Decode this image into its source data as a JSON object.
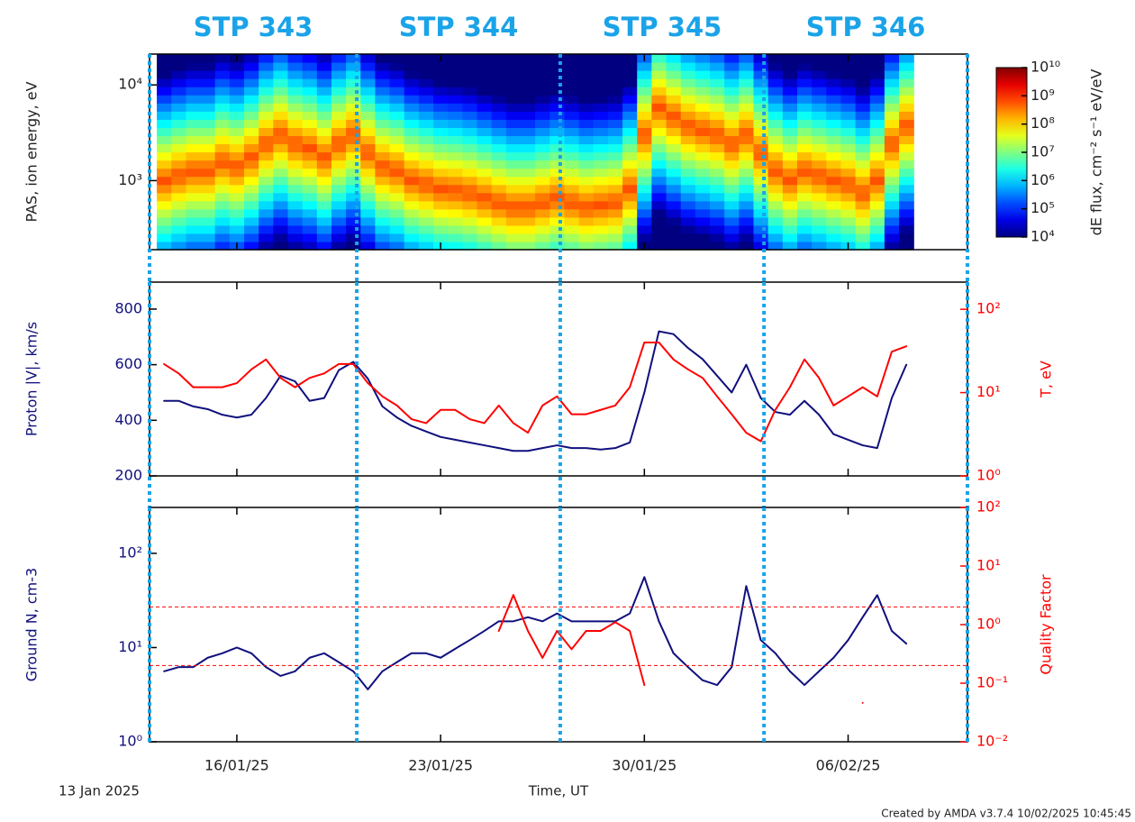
{
  "chart_data": [
    {
      "type": "spectrogram",
      "ylabel": "PAS, ion energy, eV",
      "log_y": true,
      "stp_labels": [
        "STP 343",
        "STP 344",
        "STP 345",
        "STP 346"
      ],
      "stp_color": "#1aa3e8",
      "stp_boundaries": [
        0,
        7.12,
        14.11,
        21.11,
        28.1
      ],
      "xlim": [
        0,
        28.1
      ],
      "xticks": [
        {
          "value": 3,
          "label": "16/01/25"
        },
        {
          "value": 10,
          "label": "23/01/25"
        },
        {
          "value": 17,
          "label": "30/01/25"
        },
        {
          "value": 24,
          "label": "06/02/25"
        }
      ],
      "ylim": [
        190,
        21000
      ],
      "yticks": [
        {
          "value": 1000,
          "label": "10³"
        },
        {
          "value": 10000,
          "label": "10⁴"
        }
      ],
      "colorbar": {
        "label": "dE flux, cm⁻² s⁻¹ eV/eV",
        "lim": [
          10000,
          10000000000
        ],
        "ticks": [
          {
            "value": 10000,
            "label": "10⁴"
          },
          {
            "value": 100000,
            "label": "10⁵"
          },
          {
            "value": 1000000,
            "label": "10⁶"
          },
          {
            "value": 10000000,
            "label": "10⁷"
          },
          {
            "value": 100000000,
            "label": "10⁸"
          },
          {
            "value": 1000000000,
            "label": "10⁹"
          },
          {
            "value": 10000000000,
            "label": "10¹⁰"
          }
        ]
      },
      "x": [
        0.5,
        1,
        1.5,
        2,
        2.5,
        3,
        3.5,
        4,
        4.5,
        5,
        5.5,
        6,
        6.5,
        7,
        7.5,
        8,
        8.5,
        9,
        9.5,
        10,
        10.5,
        11,
        11.5,
        12,
        12.5,
        13,
        13.5,
        14,
        14.5,
        15,
        15.5,
        16,
        16.5,
        17,
        17.5,
        18,
        18.5,
        19,
        19.5,
        20,
        20.5,
        21,
        21.5,
        22,
        22.5,
        23,
        23.5,
        24,
        24.5,
        25,
        25.5,
        26
      ],
      "values": [
        1000,
        1140,
        1270,
        1270,
        1580,
        1410,
        1760,
        2440,
        3030,
        2440,
        2190,
        1760,
        2440,
        3030,
        1960,
        1410,
        1270,
        1020,
        920,
        820,
        790,
        740,
        660,
        590,
        530,
        530,
        590,
        660,
        590,
        530,
        560,
        590,
        820,
        3030,
        5800,
        4670,
        3760,
        3370,
        3030,
        2440,
        3030,
        1960,
        1270,
        1020,
        1270,
        1140,
        1020,
        920,
        740,
        1020,
        2440,
        3760
      ]
    },
    {
      "type": "line",
      "log_y": false,
      "log_y2": true,
      "xlim": [
        0,
        28.1
      ],
      "xticks": [
        {
          "value": 3,
          "label": "16/01/25"
        },
        {
          "value": 10,
          "label": "23/01/25"
        },
        {
          "value": 17,
          "label": "30/01/25"
        },
        {
          "value": 24,
          "label": "06/02/25"
        }
      ],
      "ylim": [
        200,
        897
      ],
      "yticks": [
        200,
        400,
        600,
        800
      ],
      "y2lim": [
        1,
        212
      ],
      "y2ticks": [
        {
          "value": 1,
          "label": "10⁰"
        },
        {
          "value": 10,
          "label": "10¹"
        },
        {
          "value": 100,
          "label": "10²"
        }
      ],
      "ylabel": "Proton |V|, km/s",
      "y2label": "T, eV",
      "x": [
        0.5,
        1,
        1.5,
        2,
        2.5,
        3,
        3.5,
        4,
        4.5,
        5,
        5.5,
        6,
        6.5,
        7,
        7.5,
        8,
        8.5,
        9,
        9.5,
        10,
        10.5,
        11,
        11.5,
        12,
        12.5,
        13,
        13.5,
        14,
        14.5,
        15,
        15.5,
        16,
        16.5,
        17,
        17.5,
        18,
        18.5,
        19,
        19.5,
        20,
        20.5,
        21,
        21.5,
        22,
        22.5,
        23,
        23.5,
        24,
        24.5,
        25,
        25.5,
        26
      ],
      "series": [
        {
          "name": "Proton |V|",
          "color": "#10107e",
          "axis": "y",
          "values": [
            470,
            470,
            450,
            440,
            420,
            410,
            420,
            480,
            560,
            540,
            470,
            480,
            580,
            610,
            550,
            450,
            410,
            380,
            360,
            340,
            330,
            320,
            310,
            300,
            290,
            290,
            300,
            310,
            300,
            300,
            295,
            300,
            320,
            500,
            720,
            710,
            660,
            620,
            560,
            500,
            600,
            480,
            430,
            420,
            470,
            420,
            350,
            330,
            310,
            300,
            480,
            600
          ]
        },
        {
          "name": "T",
          "color": "#ff0000",
          "axis": "y2",
          "values": [
            22,
            17,
            11.6,
            11.6,
            11.6,
            13,
            19,
            25,
            15,
            11.6,
            15,
            17,
            22,
            22,
            13,
            9,
            7,
            4.8,
            4.3,
            6.2,
            6.2,
            4.8,
            4.3,
            7,
            4.3,
            3.3,
            7,
            9,
            5.5,
            5.5,
            6.2,
            7,
            11.6,
            40,
            40,
            25,
            19,
            15,
            9,
            5.5,
            3.3,
            2.6,
            6.2,
            11.6,
            25,
            15,
            7,
            9,
            11.6,
            9,
            31,
            36
          ]
        }
      ]
    },
    {
      "type": "line",
      "log_y": true,
      "log_y2": true,
      "xlim": [
        0,
        28.1
      ],
      "xticks": [
        {
          "value": 3,
          "label": "16/01/25"
        },
        {
          "value": 10,
          "label": "23/01/25"
        },
        {
          "value": 17,
          "label": "30/01/25"
        },
        {
          "value": 24,
          "label": "06/02/25"
        }
      ],
      "ylim": [
        1,
        307
      ],
      "yticks": [
        {
          "value": 1,
          "label": "10⁰"
        },
        {
          "value": 10,
          "label": "10¹"
        },
        {
          "value": 100,
          "label": "10²"
        }
      ],
      "y2lim": [
        0.01,
        100
      ],
      "y2ticks": [
        {
          "value": 0.01,
          "label": "10⁻²"
        },
        {
          "value": 0.1,
          "label": "10⁻¹"
        },
        {
          "value": 1,
          "label": "10⁰"
        },
        {
          "value": 10,
          "label": "10¹"
        },
        {
          "value": 100,
          "label": "10²"
        }
      ],
      "y2_reference_lines": [
        2,
        0.2
      ],
      "ylabel": "Ground N, cm-3",
      "y2label": "Quality Factor",
      "x": [
        0.5,
        1,
        1.5,
        2,
        2.5,
        3,
        3.5,
        4,
        4.5,
        5,
        5.5,
        6,
        6.5,
        7,
        7.5,
        8,
        8.5,
        9,
        9.5,
        10,
        10.5,
        11,
        11.5,
        12,
        12.5,
        13,
        13.5,
        14,
        14.5,
        15,
        15.5,
        16,
        16.5,
        17,
        17.5,
        18,
        18.5,
        19,
        19.5,
        20,
        20.5,
        21,
        21.5,
        22,
        22.5,
        23,
        23.5,
        24,
        24.5,
        25,
        25.5,
        26
      ],
      "series": [
        {
          "name": "Ground N",
          "color": "#10107e",
          "axis": "y",
          "values": [
            5.6,
            6.2,
            6.2,
            7.8,
            8.7,
            10,
            8.7,
            6.2,
            5,
            5.6,
            7.8,
            8.7,
            7,
            5.6,
            3.6,
            5.6,
            7,
            8.7,
            8.7,
            7.8,
            9.7,
            12,
            15,
            19,
            19,
            21,
            19,
            23,
            19,
            19,
            19,
            19,
            23,
            56,
            19,
            8.7,
            6.2,
            4.5,
            4,
            6.2,
            45,
            12,
            8.7,
            5.6,
            4,
            5.6,
            7.8,
            12,
            21,
            36,
            15,
            11
          ]
        },
        {
          "name": "Quality Factor",
          "color": "#ff0000",
          "axis": "y2",
          "values": [
            null,
            null,
            null,
            null,
            null,
            null,
            null,
            null,
            null,
            null,
            null,
            null,
            null,
            null,
            null,
            null,
            null,
            null,
            null,
            null,
            null,
            null,
            null,
            0.78,
            3.2,
            0.78,
            0.27,
            0.78,
            0.38,
            0.78,
            0.78,
            1.1,
            0.78,
            0.093,
            null,
            null,
            null,
            null,
            null,
            null,
            null,
            null,
            null,
            null,
            null,
            null,
            null,
            null,
            0.046,
            null,
            null,
            null
          ]
        }
      ]
    }
  ],
  "page": {
    "x_origin_label": "13 Jan 2025",
    "x_label": "Time, UT",
    "credit": "Created by AMDA v3.7.4 10/02/2025 10:45:45"
  }
}
